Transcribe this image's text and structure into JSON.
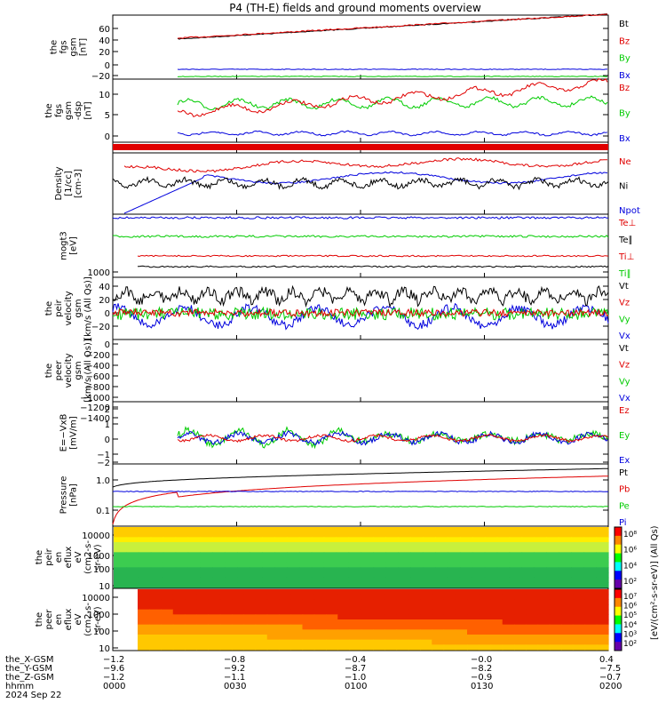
{
  "title": "P4 (TH-E) fields and ground moments overview",
  "colors": {
    "black": "#000000",
    "red": "#e00000",
    "green": "#00cc00",
    "blue": "#0000dd"
  },
  "panels": [
    {
      "ylabel": [
        "the",
        "fgs",
        "gsm",
        "[nT]"
      ],
      "yticks": [
        "60",
        "40",
        "20",
        "0",
        "−20"
      ],
      "legend": [
        {
          "text": "Bt",
          "color": "black"
        },
        {
          "text": "Bz",
          "color": "red"
        },
        {
          "text": "By",
          "color": "green"
        },
        {
          "text": "Bx",
          "color": "blue"
        }
      ]
    },
    {
      "ylabel": [
        "the",
        "fgs",
        "gsm",
        "-dsp",
        "[nT]"
      ],
      "yticks": [
        "10",
        "5",
        "0"
      ],
      "legend": [
        {
          "text": "Bz",
          "color": "red"
        },
        {
          "text": "By",
          "color": "green"
        },
        {
          "text": "Bx",
          "color": "blue"
        }
      ]
    },
    {
      "ylabel": [],
      "yticks": [],
      "legend": []
    },
    {
      "ylabel": [
        "Density",
        "[1/cc]",
        "[cm-3]"
      ],
      "yticks": [],
      "legend": [
        {
          "text": "Ne",
          "color": "red"
        },
        {
          "text": "Ni",
          "color": "black"
        },
        {
          "text": "Npot",
          "color": "blue"
        }
      ]
    },
    {
      "ylabel": [
        "mogt3",
        "[eV]"
      ],
      "yticks": [
        "1000"
      ],
      "legend": [
        {
          "text": "Te⊥",
          "color": "red"
        },
        {
          "text": "Te∥",
          "color": "black"
        },
        {
          "text": "Ti⊥",
          "color": "red"
        },
        {
          "text": "Ti∥",
          "color": "green"
        }
      ]
    },
    {
      "ylabel": [
        "the",
        "peir",
        "velocity",
        "gsm",
        "[km/s (All Qs)]"
      ],
      "yticks": [
        "40",
        "20",
        "0",
        "−20"
      ],
      "legend": [
        {
          "text": "Vt",
          "color": "black"
        },
        {
          "text": "Vz",
          "color": "red"
        },
        {
          "text": "Vy",
          "color": "green"
        },
        {
          "text": "Vx",
          "color": "blue"
        }
      ]
    },
    {
      "ylabel": [
        "the",
        "peer",
        "velocity",
        "gsm",
        "[km/s (All Qs)]"
      ],
      "yticks": [
        "0",
        "−200",
        "−400",
        "−600",
        "−800",
        "−1000",
        "−1200",
        "−1400"
      ],
      "legend": [
        {
          "text": "Vt",
          "color": "black"
        },
        {
          "text": "Vz",
          "color": "red"
        },
        {
          "text": "Vy",
          "color": "green"
        },
        {
          "text": "Vx",
          "color": "blue"
        }
      ]
    },
    {
      "ylabel": [
        "E=−VxB",
        "[mV/m]"
      ],
      "yticks": [
        "2",
        "1",
        "0",
        "−1",
        "−2"
      ],
      "legend": [
        {
          "text": "Ez",
          "color": "red"
        },
        {
          "text": "Ey",
          "color": "green"
        },
        {
          "text": "Ex",
          "color": "blue"
        }
      ]
    },
    {
      "ylabel": [
        "Pressure",
        "[nPa]"
      ],
      "yticks": [
        "1.0",
        "0.1"
      ],
      "legend": [
        {
          "text": "Pt",
          "color": "black"
        },
        {
          "text": "Pb",
          "color": "red"
        },
        {
          "text": "Pe",
          "color": "green"
        },
        {
          "text": "Pi",
          "color": "blue"
        }
      ]
    },
    {
      "ylabel": [
        "the",
        "peir",
        "en",
        "eflux",
        "eV",
        "(cm2-s-",
        "sr-eV)"
      ],
      "yticks": [
        "10000",
        "1000",
        "100",
        "10"
      ],
      "legend": []
    },
    {
      "ylabel": [
        "the",
        "peer",
        "en",
        "eflux",
        "eV",
        "(cm2-s-",
        "sr-eV)"
      ],
      "yticks": [
        "10000",
        "1000",
        "100",
        "10"
      ],
      "legend": []
    }
  ],
  "colorbars": [
    {
      "ticks": [
        "10⁸",
        "10⁶",
        "10⁴",
        "10²"
      ],
      "label": "[eV/(cm²-s-sr-eV)] (All Qs)"
    },
    {
      "ticks": [
        "10⁷",
        "10⁶",
        "10⁵",
        "10⁴",
        "10³",
        "10²"
      ],
      "label": "[eV/(cm²-s-sr-eV)] (All Qs)"
    }
  ],
  "xaxis": {
    "row_labels": [
      "the_X-GSM",
      "the_Y-GSM",
      "the_Z-GSM",
      "hhmm",
      "2024 Sep 22"
    ],
    "columns": [
      {
        "x": "−1.2",
        "y": "−9.6",
        "z": "−1.2",
        "t": "0000"
      },
      {
        "x": "−0.8",
        "y": "−9.2",
        "z": "−1.1",
        "t": "0030"
      },
      {
        "x": "−0.4",
        "y": "−8.7",
        "z": "−1.0",
        "t": "0100"
      },
      {
        "x": "−0.0",
        "y": "−8.2",
        "z": "−0.9",
        "t": "0130"
      },
      {
        "x": "0.4",
        "y": "−7.5",
        "z": "−0.7",
        "t": "0200"
      }
    ]
  },
  "chart_data": {
    "type": "line",
    "title": "P4 (TH-E) fields and ground moments overview",
    "x_range": [
      "0000",
      "0200"
    ],
    "series": [
      {
        "panel": "fgs gsm",
        "name": "Bt",
        "approx_values": [
          35,
          45,
          55,
          65,
          75
        ]
      },
      {
        "panel": "fgs gsm",
        "name": "Bz",
        "approx_values": [
          36,
          46,
          56,
          66,
          76
        ]
      },
      {
        "panel": "fgs gsm",
        "name": "By",
        "approx_values": [
          -18,
          -19,
          -20,
          -21,
          -22
        ]
      },
      {
        "panel": "fgs gsm",
        "name": "Bx",
        "approx_values": [
          -7,
          -7,
          -8,
          -8,
          -8
        ]
      },
      {
        "panel": "fgs gsm dsp",
        "name": "Bz",
        "approx_values": [
          5,
          7,
          9,
          11,
          13
        ]
      },
      {
        "panel": "fgs gsm dsp",
        "name": "By",
        "approx_values": [
          10,
          9,
          8,
          9,
          7
        ]
      },
      {
        "panel": "fgs gsm dsp",
        "name": "Bx",
        "approx_values": [
          0,
          -1,
          -1,
          -1,
          -1
        ]
      },
      {
        "panel": "pressure",
        "name": "Pt",
        "approx_values": [
          0.8,
          1.2,
          1.5,
          1.8,
          2.2
        ]
      },
      {
        "panel": "pressure",
        "name": "Pb",
        "approx_values": [
          0.6,
          0.9,
          1.2,
          1.5,
          2.0
        ]
      },
      {
        "panel": "pressure",
        "name": "Pe",
        "approx_values": [
          0.15,
          0.15,
          0.14,
          0.14,
          0.13
        ]
      },
      {
        "panel": "pressure",
        "name": "Pi",
        "approx_values": [
          0.45,
          0.45,
          0.44,
          0.43,
          0.42
        ]
      }
    ]
  }
}
